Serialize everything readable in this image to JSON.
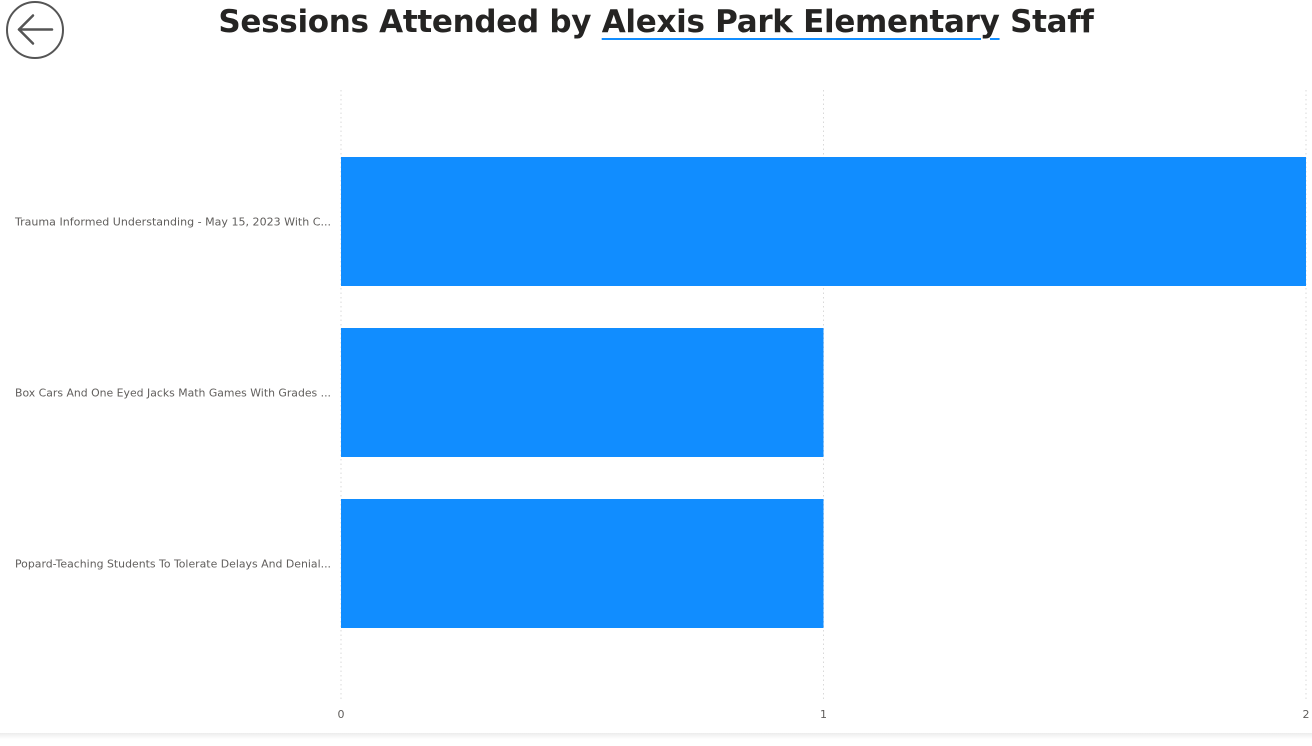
{
  "header": {
    "title_prefix": "Sessions Attended by ",
    "title_link": "Alexis Park Elementary",
    "title_suffix": " Staff",
    "back_icon": "arrow-left-icon"
  },
  "colors": {
    "bar": "#118dff",
    "title_underline": "#118dff",
    "gridline": "#d9d9d9",
    "label": "#605e5c",
    "title": "#252423"
  },
  "chart_data": {
    "type": "bar",
    "orientation": "horizontal",
    "categories": [
      "Trauma Informed Understanding - May 15, 2023 With C...",
      "Box Cars And One Eyed Jacks Math Games With Grades ...",
      "Popard-Teaching Students To Tolerate Delays And Denial..."
    ],
    "values": [
      2,
      1,
      1
    ],
    "xlim": [
      0,
      2
    ],
    "x_ticks": [
      "0",
      "1",
      "2"
    ],
    "grid": true
  }
}
